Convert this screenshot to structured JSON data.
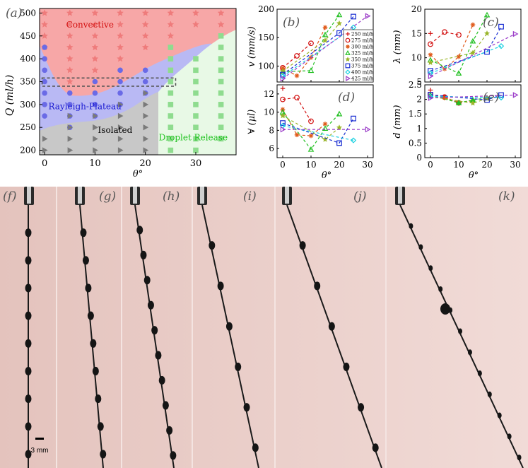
{
  "figure": {
    "panel_labels": {
      "a": "(a)",
      "b": "(b)",
      "c": "(c)",
      "d": "(d)",
      "e": "(e)",
      "f": "(f)",
      "g": "(g)",
      "h": "(h)",
      "i": "(i)",
      "j": "(j)",
      "k": "(k)"
    },
    "scale_bar_label": "3 mm",
    "colors": {
      "convective": "#f7a7a7",
      "rayleigh": "#b9b9f4",
      "isolated": "#c6c6c6",
      "droplet": "#e6f8e4",
      "axis": "#000000",
      "photo_bg": "#e9cfca"
    }
  },
  "chart_data": [
    {
      "id": "a",
      "type": "scatter",
      "title": "",
      "xlabel": "θ°",
      "ylabel": "Q (ml/h)",
      "xlim": [
        -1,
        38
      ],
      "ylim": [
        190,
        510
      ],
      "xticks": [
        0,
        10,
        20,
        30
      ],
      "yticks": [
        200,
        250,
        300,
        350,
        400,
        450,
        500
      ],
      "regions": [
        {
          "name": "Convective",
          "label": "Convective",
          "label_xy": [
            9,
            468
          ]
        },
        {
          "name": "Rayleigh-Plateau",
          "label": "Rayleigh-Plateau",
          "label_xy": [
            8,
            290
          ]
        },
        {
          "name": "Isolated",
          "label": "Isolated",
          "label_xy": [
            14,
            238
          ]
        },
        {
          "name": "Droplet Release",
          "label": "Droplet Release",
          "label_xy": [
            29.5,
            222
          ]
        }
      ],
      "highlight_box": {
        "x": [
          -0.5,
          26
        ],
        "y": [
          340,
          358
        ]
      },
      "series": [
        {
          "name": "Convective",
          "marker": "star",
          "color": "#ef7b7b",
          "x": [
            0,
            0,
            0,
            0,
            5,
            5,
            5,
            5,
            5,
            5,
            5,
            10,
            10,
            10,
            10,
            10,
            10,
            15,
            15,
            15,
            15,
            15,
            20,
            20,
            20,
            20,
            25,
            25,
            25,
            30,
            30,
            35,
            35
          ],
          "y": [
            500,
            475,
            450,
            425,
            500,
            475,
            450,
            425,
            400,
            375,
            350,
            500,
            475,
            450,
            425,
            400,
            375,
            500,
            475,
            450,
            425,
            400,
            500,
            475,
            450,
            425,
            500,
            475,
            450,
            500,
            475,
            500,
            475
          ]
        },
        {
          "name": "Rayleigh-Plateau",
          "marker": "circle",
          "color": "#6a6ae6",
          "x": [
            0,
            0,
            0,
            0,
            0,
            0,
            0,
            5,
            5,
            5,
            5,
            10,
            10,
            10,
            10,
            15,
            15,
            15,
            15,
            20,
            20,
            20
          ],
          "y": [
            425,
            400,
            375,
            350,
            325,
            300,
            275,
            325,
            300,
            275,
            250,
            350,
            325,
            300,
            275,
            375,
            350,
            325,
            300,
            375,
            350,
            325
          ]
        },
        {
          "name": "Isolated",
          "marker": "triangle",
          "color": "#7a7a7a",
          "x": [
            0,
            0,
            5,
            5,
            5,
            5,
            10,
            10,
            10,
            10,
            10,
            15,
            15,
            15,
            15,
            15,
            20,
            20,
            20,
            20,
            20,
            20
          ],
          "y": [
            225,
            200,
            250,
            225,
            200,
            275,
            275,
            250,
            225,
            200,
            250,
            275,
            250,
            225,
            200,
            300,
            300,
            275,
            250,
            225,
            200,
            325
          ]
        },
        {
          "name": "Droplet Release",
          "marker": "square",
          "color": "#8fdc8f",
          "x": [
            25,
            25,
            25,
            25,
            25,
            25,
            25,
            25,
            25,
            25,
            30,
            30,
            30,
            30,
            30,
            30,
            30,
            30,
            30,
            35,
            35,
            35,
            35,
            35,
            35,
            35,
            35,
            35,
            35
          ],
          "y": [
            425,
            400,
            375,
            350,
            325,
            300,
            275,
            250,
            225,
            200,
            400,
            375,
            350,
            325,
            300,
            275,
            250,
            225,
            200,
            450,
            425,
            400,
            375,
            350,
            325,
            300,
            275,
            250,
            225
          ]
        }
      ]
    },
    {
      "id": "b",
      "type": "line",
      "xlabel": "",
      "ylabel": "v (mm/s)",
      "xlim": [
        -2,
        32
      ],
      "ylim": [
        72,
        200
      ],
      "xticks": [
        0,
        10,
        20,
        30
      ],
      "yticks": [
        100,
        150,
        200
      ],
      "legend": [
        "250 ml/h",
        "275 ml/h",
        "300 ml/h",
        "325 ml/h",
        "350 ml/h",
        "375 ml/h",
        "400 ml/h",
        "425 ml/h"
      ],
      "series": [
        {
          "name": "250 ml/h",
          "x": [
            0
          ],
          "y": [
            94
          ]
        },
        {
          "name": "275 ml/h",
          "x": [
            0,
            5,
            10
          ],
          "y": [
            97,
            118,
            140
          ]
        },
        {
          "name": "300 ml/h",
          "x": [
            0,
            5,
            10,
            15
          ],
          "y": [
            96,
            83,
            115,
            168
          ]
        },
        {
          "name": "325 ml/h",
          "x": [
            0,
            10,
            15,
            20
          ],
          "y": [
            90,
            92,
            155,
            190
          ]
        },
        {
          "name": "350 ml/h",
          "x": [
            0,
            15,
            20
          ],
          "y": [
            91,
            145,
            175
          ]
        },
        {
          "name": "375 ml/h",
          "x": [
            0,
            20,
            25
          ],
          "y": [
            85,
            158,
            187
          ]
        },
        {
          "name": "400 ml/h",
          "x": [
            0,
            25
          ],
          "y": [
            82,
            168
          ]
        },
        {
          "name": "425 ml/h",
          "x": [
            0,
            30
          ],
          "y": [
            78,
            188
          ]
        }
      ]
    },
    {
      "id": "c",
      "type": "line",
      "xlabel": "",
      "ylabel": "λ (mm)",
      "xlim": [
        -2,
        32
      ],
      "ylim": [
        5,
        20
      ],
      "xticks": [
        0,
        10,
        20,
        30
      ],
      "yticks": [
        5,
        10,
        15,
        20
      ],
      "series": [
        {
          "name": "250 ml/h",
          "x": [
            0
          ],
          "y": [
            15
          ]
        },
        {
          "name": "275 ml/h",
          "x": [
            0,
            5,
            10
          ],
          "y": [
            12.8,
            15.3,
            14.7
          ]
        },
        {
          "name": "300 ml/h",
          "x": [
            0,
            5,
            10,
            15
          ],
          "y": [
            10.6,
            7.7,
            10.2,
            16.8
          ]
        },
        {
          "name": "325 ml/h",
          "x": [
            0,
            10,
            15,
            20
          ],
          "y": [
            9.5,
            6.8,
            13.4,
            18.8
          ]
        },
        {
          "name": "350 ml/h",
          "x": [
            0,
            15,
            20
          ],
          "y": [
            9,
            11,
            15
          ]
        },
        {
          "name": "375 ml/h",
          "x": [
            0,
            20,
            25
          ],
          "y": [
            7.3,
            11.2,
            16.4
          ]
        },
        {
          "name": "400 ml/h",
          "x": [
            0,
            25
          ],
          "y": [
            6.8,
            12.4
          ]
        },
        {
          "name": "425 ml/h",
          "x": [
            0,
            30
          ],
          "y": [
            6.2,
            14.9
          ]
        }
      ]
    },
    {
      "id": "d",
      "type": "line",
      "xlabel": "θ°",
      "ylabel": "∀ (μl)",
      "xlim": [
        -2,
        32
      ],
      "ylim": [
        5,
        13
      ],
      "xticks": [
        0,
        10,
        20,
        30
      ],
      "yticks": [
        6,
        8,
        10,
        12
      ],
      "series": [
        {
          "name": "250 ml/h",
          "x": [
            0
          ],
          "y": [
            12.6
          ]
        },
        {
          "name": "275 ml/h",
          "x": [
            0,
            5,
            10
          ],
          "y": [
            11.4,
            11.6,
            9
          ]
        },
        {
          "name": "300 ml/h",
          "x": [
            0,
            5,
            10,
            15
          ],
          "y": [
            10.3,
            7.5,
            7.4,
            8.7
          ]
        },
        {
          "name": "325 ml/h",
          "x": [
            0,
            10,
            15,
            20
          ],
          "y": [
            10,
            5.9,
            8.2,
            9.8
          ]
        },
        {
          "name": "350 ml/h",
          "x": [
            0,
            15,
            20
          ],
          "y": [
            9.6,
            7,
            8.3
          ]
        },
        {
          "name": "375 ml/h",
          "x": [
            0,
            20,
            25
          ],
          "y": [
            8.8,
            6.6,
            9.3
          ]
        },
        {
          "name": "400 ml/h",
          "x": [
            0,
            25
          ],
          "y": [
            8.5,
            6.9
          ]
        },
        {
          "name": "425 ml/h",
          "x": [
            0,
            30
          ],
          "y": [
            8.1,
            8.1
          ]
        }
      ]
    },
    {
      "id": "e",
      "type": "line",
      "xlabel": "θ°",
      "ylabel": "d (mm)",
      "xlim": [
        -2,
        32
      ],
      "ylim": [
        0,
        2.5
      ],
      "xticks": [
        0,
        10,
        20,
        30
      ],
      "yticks": [
        0,
        0.5,
        1,
        1.5,
        2,
        2.5
      ],
      "series": [
        {
          "name": "250 ml/h",
          "x": [
            0
          ],
          "y": [
            2.32
          ]
        },
        {
          "name": "275 ml/h",
          "x": [
            0,
            5,
            10
          ],
          "y": [
            2.17,
            2.08,
            1.88
          ]
        },
        {
          "name": "300 ml/h",
          "x": [
            0,
            5,
            10,
            15
          ],
          "y": [
            2.12,
            2.05,
            1.9,
            1.95
          ]
        },
        {
          "name": "325 ml/h",
          "x": [
            0,
            10,
            15,
            20
          ],
          "y": [
            2.15,
            1.88,
            1.98,
            2.05
          ]
        },
        {
          "name": "350 ml/h",
          "x": [
            0,
            15,
            20
          ],
          "y": [
            2.1,
            1.87,
            2.03
          ]
        },
        {
          "name": "375 ml/h",
          "x": [
            0,
            20,
            25
          ],
          "y": [
            2.16,
            1.98,
            2.15
          ]
        },
        {
          "name": "400 ml/h",
          "x": [
            0,
            25
          ],
          "y": [
            2.1,
            2.06
          ]
        },
        {
          "name": "425 ml/h",
          "x": [
            0,
            30
          ],
          "y": [
            2.05,
            2.15
          ]
        }
      ]
    }
  ]
}
